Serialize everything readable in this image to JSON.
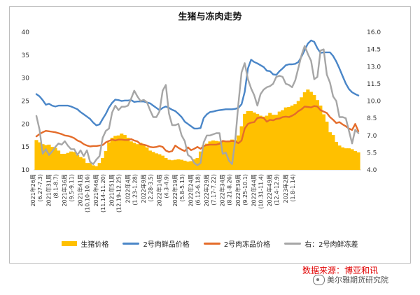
{
  "chart_data": {
    "type": "line",
    "title": "生猪与冻肉走势",
    "x_labels": [
      "2021年26周",
      "(6.27-7.3)",
      "2021年31周",
      "(8.1-8.7)",
      "2021年36周",
      "(9.5-9.11)",
      "2021年41周",
      "(10.10-10.16)",
      "2021年46周",
      "(11.14-11.20)",
      "2021年51周",
      "(12.19-12.25)",
      "2022年4周",
      "(1.23-1.28)",
      "2022年9周",
      "(2.28-3.5)",
      "2022年14周",
      "(4.3-4.9)",
      "2022年19周",
      "(5.8-5.13)",
      "2022年24周",
      "(6.12-6.18)",
      "2022年29周",
      "(7.17-7.22)",
      "2022年34周",
      "(8.21-8.26)",
      "2022年39周",
      "(9.25-10.1)",
      "2022年44周",
      "(10.31-11.4)",
      "2022年49周",
      "(12.4-12.9)",
      "2023年2周",
      "(1.8-1.14)"
    ],
    "y_left": {
      "min": 10,
      "max": 40,
      "ticks": [
        "10",
        "15",
        "20",
        "25",
        "30",
        "35",
        "40"
      ]
    },
    "y_right": {
      "min": 4.0,
      "max": 16.0,
      "ticks": [
        "4.0",
        "5.5",
        "7.0",
        "8.5",
        "10.0",
        "11.5",
        "13.0",
        "14.5",
        "16.0"
      ]
    },
    "grid": false,
    "legend_position": "bottom",
    "series": [
      {
        "name": "生猪价格",
        "type": "area",
        "axis": "left",
        "color": "#FFC000",
        "values": [
          16.5,
          16.0,
          15.6,
          15.4,
          15.5,
          15.0,
          14.8,
          14.2,
          13.5,
          13.5,
          13.7,
          14.0,
          13.9,
          13.2,
          12.8,
          12.5,
          11.5,
          11.5,
          11.0,
          10.8,
          11.5,
          12.6,
          14.1,
          16.0,
          17.0,
          17.4,
          17.5,
          17.9,
          17.6,
          17.0,
          16.2,
          15.9,
          15.6,
          15.9,
          15.4,
          14.9,
          14.2,
          13.9,
          13.6,
          13.4,
          13.1,
          12.6,
          12.2,
          12.1,
          12.2,
          12.3,
          12.2,
          12.0,
          11.8,
          11.9,
          12.3,
          12.6,
          14.0,
          15.4,
          15.7,
          16.2,
          16.4,
          16.3,
          16.2,
          16.1,
          16.3,
          16.4,
          16.6,
          16.5,
          17.5,
          19.5,
          22.2,
          22.8,
          22.8,
          22.5,
          22.2,
          21.8,
          21.6,
          21.8,
          22.4,
          22.0,
          22.0,
          22.7,
          23.0,
          23.6,
          23.7,
          24.0,
          24.3,
          25.0,
          25.8,
          26.9,
          27.5,
          27.0,
          26.3,
          25.2,
          24.0,
          22.1,
          20.5,
          18.2,
          17.6,
          16.1,
          15.3,
          14.9,
          14.7,
          14.7,
          14.5,
          14.1,
          13.8
        ]
      },
      {
        "name": "2号肉鲜品价格",
        "type": "line",
        "axis": "left",
        "color": "#4A86C8",
        "values": [
          26.5,
          26.0,
          25.2,
          24.2,
          24.4,
          24.0,
          23.8,
          24.0,
          24.0,
          24.0,
          24.0,
          23.8,
          23.5,
          23.2,
          22.6,
          22.1,
          21.6,
          21.1,
          20.3,
          19.7,
          19.9,
          21.1,
          22.2,
          23.6,
          24.6,
          25.3,
          25.2,
          25.0,
          25.1,
          25.1,
          25.2,
          24.8,
          24.9,
          24.9,
          24.9,
          24.7,
          24.5,
          24.0,
          23.5,
          23.0,
          23.5,
          23.8,
          23.5,
          23.1,
          22.8,
          22.2,
          21.5,
          20.5,
          20.0,
          19.5,
          19.0,
          19.0,
          19.1,
          21.3,
          22.1,
          22.6,
          22.7,
          22.9,
          23.0,
          23.1,
          23.2,
          23.2,
          23.2,
          23.3,
          23.5,
          24.3,
          27.0,
          32.1,
          34.0,
          33.5,
          33.2,
          32.8,
          32.4,
          31.6,
          31.5,
          30.8,
          30.7,
          31.5,
          32.1,
          32.8,
          33.0,
          33.0,
          33.1,
          33.5,
          34.7,
          36.1,
          37.5,
          38.2,
          37.9,
          36.5,
          35.5,
          35.6,
          35.6,
          35.6,
          34.8,
          33.6,
          32.1,
          30.4,
          28.8,
          27.6,
          26.9,
          26.5,
          26.2
        ]
      },
      {
        "name": "2号肉冻品价格",
        "type": "line",
        "axis": "left",
        "color": "#E46C2A",
        "values": [
          17.3,
          17.8,
          18.2,
          18.5,
          18.4,
          18.3,
          18.2,
          18.0,
          17.8,
          17.5,
          17.4,
          17.2,
          16.9,
          16.4,
          16.1,
          15.6,
          15.3,
          15.1,
          15.2,
          15.2,
          15.3,
          15.4,
          16.0,
          16.3,
          16.6,
          16.4,
          16.6,
          16.6,
          16.5,
          16.5,
          16.7,
          16.4,
          16.2,
          15.6,
          15.5,
          15.3,
          15.0,
          14.9,
          15.0,
          15.2,
          15.0,
          14.2,
          13.9,
          14.1,
          15.3,
          14.8,
          14.4,
          14.1,
          14.9,
          14.3,
          14.6,
          15.0,
          14.6,
          15.2,
          15.4,
          15.5,
          15.5,
          15.5,
          15.7,
          16.3,
          16.2,
          16.2,
          16.3,
          16.2,
          15.8,
          16.4,
          19.0,
          20.0,
          20.3,
          20.4,
          21.3,
          21.4,
          21.3,
          20.5,
          20.9,
          20.8,
          21.1,
          21.2,
          21.5,
          21.6,
          21.5,
          21.8,
          22.2,
          22.8,
          23.2,
          23.8,
          23.7,
          23.6,
          23.9,
          23.8,
          23.0,
          22.7,
          22.4,
          21.5,
          20.9,
          20.2,
          20.4,
          19.9,
          19.5,
          19.0,
          18.7,
          20.0,
          18.4
        ]
      },
      {
        "name": "右：2号肉鲜冻差",
        "type": "line",
        "axis": "right",
        "color": "#A6A6A6",
        "values": [
          8.7,
          7.5,
          5.4,
          5.8,
          5.3,
          5.6,
          6.0,
          6.3,
          6.2,
          6.5,
          6.1,
          5.8,
          5.8,
          5.3,
          5.7,
          5.2,
          5.7,
          4.7,
          4.5,
          4.9,
          5.2,
          6.8,
          7.4,
          7.6,
          9.0,
          9.6,
          9.2,
          9.5,
          9.5,
          9.6,
          10.2,
          10.9,
          10.4,
          10.0,
          10.1,
          9.9,
          9.2,
          8.6,
          8.6,
          9.1,
          10.9,
          11.4,
          8.9,
          7.9,
          7.9,
          8.0,
          7.0,
          6.5,
          5.3,
          5.1,
          4.6,
          4.4,
          4.6,
          6.4,
          7.0,
          7.0,
          7.1,
          7.2,
          7.2,
          5.4,
          5.5,
          4.8,
          4.5,
          6.6,
          9.8,
          12.5,
          13.3,
          11.9,
          11.1,
          10.5,
          9.6,
          10.6,
          11.0,
          11.2,
          11.3,
          11.5,
          12.1,
          12.2,
          12.1,
          11.5,
          11.4,
          11.2,
          11.8,
          12.9,
          14.0,
          14.8,
          14.1,
          13.5,
          11.9,
          12.1,
          14.4,
          14.5,
          12.3,
          11.6,
          10.4,
          10.0,
          8.6,
          8.6,
          8.5,
          7.4,
          6.3,
          7.5,
          7.2
        ]
      }
    ]
  },
  "footer": {
    "source": "数据来源：博亚和讯",
    "watermark": "美尔雅期货研究院"
  }
}
